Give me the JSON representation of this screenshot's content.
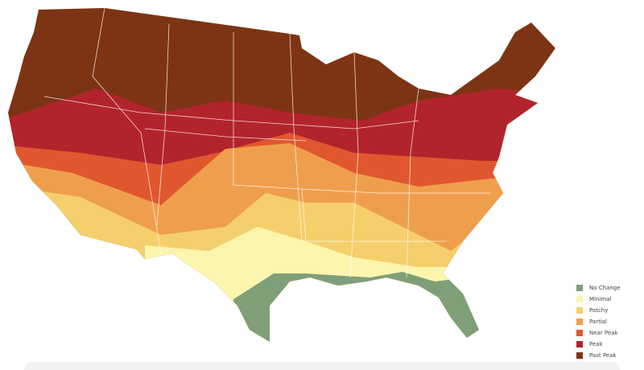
{
  "legend": [
    {
      "label": "No Change",
      "color": "#7f9f78"
    },
    {
      "label": "Minimal",
      "color": "#fbf5ae"
    },
    {
      "label": "Patchy",
      "color": "#f5cf6b"
    },
    {
      "label": "Partial",
      "color": "#ef9f4c"
    },
    {
      "label": "Near Peak",
      "color": "#e0572f"
    },
    {
      "label": "Peak",
      "color": "#b2242c"
    },
    {
      "label": "Past Peak",
      "color": "#7d3414"
    }
  ]
}
